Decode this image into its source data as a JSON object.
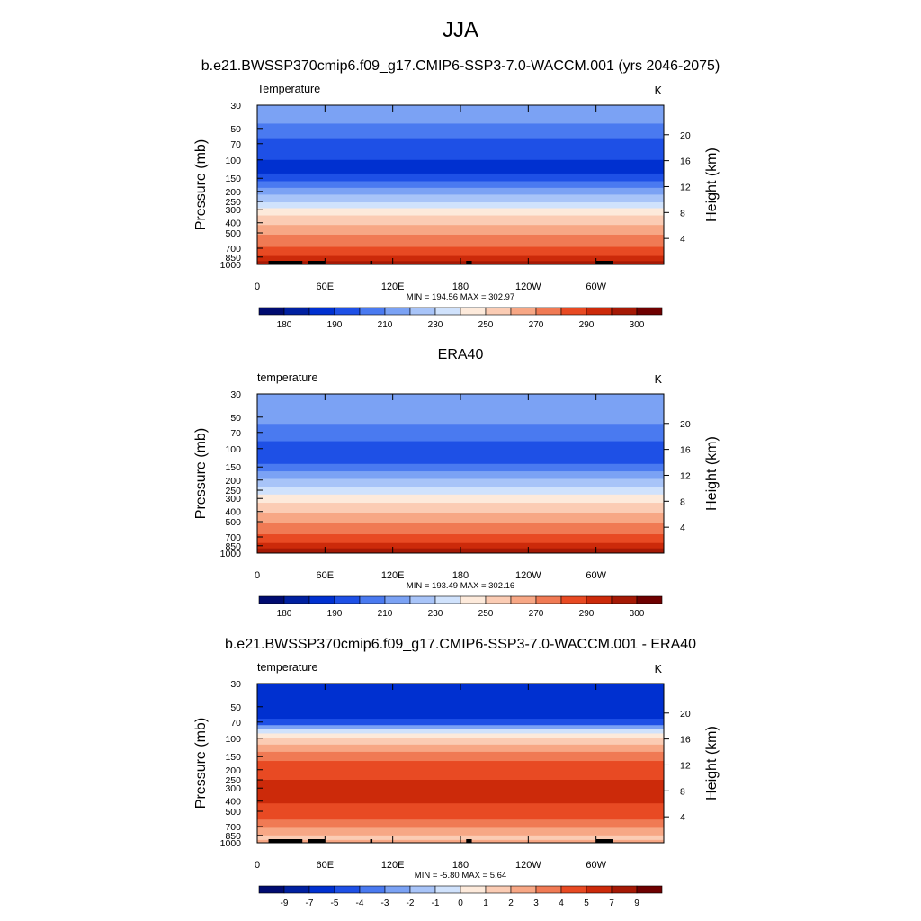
{
  "figure_title": "JJA",
  "colors": {
    "temp_palette": [
      "#000b70",
      "#0020a0",
      "#0030d0",
      "#1e50e6",
      "#4a7af0",
      "#7ba2f4",
      "#a8c4f8",
      "#d0e2fc",
      "#fdeadb",
      "#fbccb4",
      "#f7a785",
      "#f07a54",
      "#e84a23",
      "#cc2a0a",
      "#a51905",
      "#6e0000"
    ],
    "diff_palette": [
      "#000b70",
      "#0020a0",
      "#0030d0",
      "#1e50e6",
      "#4a7af0",
      "#7ba2f4",
      "#a8c4f8",
      "#d0e2fc",
      "#fdeadb",
      "#fbccb4",
      "#f7a785",
      "#f07a54",
      "#e84a23",
      "#cc2a0a",
      "#a51905",
      "#6e0000"
    ]
  },
  "chart_data": [
    {
      "type": "heatmap",
      "title": "b.e21.BWSSP370cmip6.f09_g17.CMIP6-SSP3-7.0-WACCM.001 (yrs 2046-2075)",
      "left_label": "Temperature",
      "units": "K",
      "ylabel": "Pressure (mb)",
      "ylabel_right": "Height (km)",
      "y_ticks": [
        "30",
        "50",
        "70",
        "100",
        "150",
        "200",
        "250",
        "300",
        "400",
        "500",
        "700",
        "850",
        "1000"
      ],
      "y_tick_values": [
        30,
        50,
        70,
        100,
        150,
        200,
        250,
        300,
        400,
        500,
        700,
        850,
        1000
      ],
      "right_ticks": [
        "20",
        "16",
        "12",
        "8",
        "4"
      ],
      "right_tick_values": [
        20,
        16,
        12,
        8,
        4
      ],
      "x_ticks": [
        "0",
        "60E",
        "120E",
        "180",
        "120W",
        "60W"
      ],
      "x_tick_values": [
        0,
        60,
        120,
        180,
        240,
        300
      ],
      "xlim": [
        0,
        360
      ],
      "ylim": [
        30,
        1000
      ],
      "stats": "MIN = 194.56  MAX = 302.97",
      "colorbar_labels": [
        "180",
        "190",
        "210",
        "230",
        "250",
        "270",
        "290",
        "300"
      ],
      "colorbar_label_positions": [
        1,
        3,
        5,
        7,
        9,
        11,
        13,
        15
      ],
      "levels": [
        {
          "p": 30,
          "c": 5
        },
        {
          "p": 45,
          "c": 4
        },
        {
          "p": 62,
          "c": 3
        },
        {
          "p": 100,
          "c": 2
        },
        {
          "p": 135,
          "c": 3
        },
        {
          "p": 160,
          "c": 4
        },
        {
          "p": 185,
          "c": 5
        },
        {
          "p": 215,
          "c": 6
        },
        {
          "p": 255,
          "c": 7
        },
        {
          "p": 290,
          "c": 8
        },
        {
          "p": 340,
          "c": 9
        },
        {
          "p": 420,
          "c": 10
        },
        {
          "p": 520,
          "c": 11
        },
        {
          "p": 680,
          "c": 12
        },
        {
          "p": 830,
          "c": 13
        },
        {
          "p": 930,
          "c": 14
        }
      ],
      "topography": [
        [
          10,
          30
        ],
        [
          25,
          35
        ],
        [
          33,
          40
        ],
        [
          45,
          60
        ],
        [
          100,
          102
        ],
        [
          185,
          190
        ],
        [
          300,
          315
        ]
      ]
    },
    {
      "type": "heatmap",
      "title": "ERA40",
      "left_label": "temperature",
      "units": "K",
      "ylabel": "Pressure (mb)",
      "ylabel_right": "Height (km)",
      "y_ticks": [
        "30",
        "50",
        "70",
        "100",
        "150",
        "200",
        "250",
        "300",
        "400",
        "500",
        "700",
        "850",
        "1000"
      ],
      "y_tick_values": [
        30,
        50,
        70,
        100,
        150,
        200,
        250,
        300,
        400,
        500,
        700,
        850,
        1000
      ],
      "right_ticks": [
        "20",
        "16",
        "12",
        "8",
        "4"
      ],
      "right_tick_values": [
        20,
        16,
        12,
        8,
        4
      ],
      "x_ticks": [
        "0",
        "60E",
        "120E",
        "180",
        "120W",
        "60W"
      ],
      "x_tick_values": [
        0,
        60,
        120,
        180,
        240,
        300
      ],
      "xlim": [
        0,
        360
      ],
      "ylim": [
        30,
        1000
      ],
      "stats": "MIN = 193.49  MAX = 302.16",
      "colorbar_labels": [
        "180",
        "190",
        "210",
        "230",
        "250",
        "270",
        "290",
        "300"
      ],
      "colorbar_label_positions": [
        1,
        3,
        5,
        7,
        9,
        11,
        13,
        15
      ],
      "levels": [
        {
          "p": 30,
          "c": 5
        },
        {
          "p": 58,
          "c": 4
        },
        {
          "p": 85,
          "c": 3
        },
        {
          "p": 115,
          "c": 3
        },
        {
          "p": 140,
          "c": 4
        },
        {
          "p": 165,
          "c": 5
        },
        {
          "p": 195,
          "c": 6
        },
        {
          "p": 235,
          "c": 7
        },
        {
          "p": 275,
          "c": 8
        },
        {
          "p": 330,
          "c": 9
        },
        {
          "p": 410,
          "c": 10
        },
        {
          "p": 510,
          "c": 11
        },
        {
          "p": 660,
          "c": 12
        },
        {
          "p": 800,
          "c": 13
        },
        {
          "p": 900,
          "c": 14
        }
      ],
      "topography": []
    },
    {
      "type": "heatmap",
      "title": "b.e21.BWSSP370cmip6.f09_g17.CMIP6-SSP3-7.0-WACCM.001 - ERA40",
      "left_label": "temperature",
      "units": "K",
      "ylabel": "Pressure (mb)",
      "ylabel_right": "Height (km)",
      "y_ticks": [
        "30",
        "50",
        "70",
        "100",
        "150",
        "200",
        "250",
        "300",
        "400",
        "500",
        "700",
        "850",
        "1000"
      ],
      "y_tick_values": [
        30,
        50,
        70,
        100,
        150,
        200,
        250,
        300,
        400,
        500,
        700,
        850,
        1000
      ],
      "right_ticks": [
        "20",
        "16",
        "12",
        "8",
        "4"
      ],
      "right_tick_values": [
        20,
        16,
        12,
        8,
        4
      ],
      "x_ticks": [
        "0",
        "60E",
        "120E",
        "180",
        "120W",
        "60W"
      ],
      "x_tick_values": [
        0,
        60,
        120,
        180,
        240,
        300
      ],
      "xlim": [
        0,
        360
      ],
      "ylim": [
        30,
        1000
      ],
      "stats": "MIN =  -5.80  MAX =   5.64",
      "colorbar_labels": [
        "-9",
        "-7",
        "-5",
        "-4",
        "-3",
        "-2",
        "-1",
        "0",
        "1",
        "2",
        "3",
        "4",
        "5",
        "7",
        "9"
      ],
      "colorbar_label_positions": [
        1,
        2,
        3,
        4,
        5,
        6,
        7,
        8,
        9,
        10,
        11,
        12,
        13,
        14,
        15
      ],
      "levels": [
        {
          "p": 30,
          "c": 2
        },
        {
          "p": 65,
          "c": 3
        },
        {
          "p": 75,
          "c": 5
        },
        {
          "p": 82,
          "c": 7
        },
        {
          "p": 90,
          "c": 8
        },
        {
          "p": 100,
          "c": 9
        },
        {
          "p": 115,
          "c": 10
        },
        {
          "p": 135,
          "c": 11
        },
        {
          "p": 165,
          "c": 12
        },
        {
          "p": 250,
          "c": 13
        },
        {
          "p": 420,
          "c": 12
        },
        {
          "p": 600,
          "c": 11
        },
        {
          "p": 720,
          "c": 10
        },
        {
          "p": 850,
          "c": 9
        },
        {
          "p": 940,
          "c": 10
        }
      ],
      "topography": [
        [
          10,
          30
        ],
        [
          25,
          35
        ],
        [
          33,
          40
        ],
        [
          45,
          60
        ],
        [
          100,
          102
        ],
        [
          185,
          190
        ],
        [
          300,
          315
        ]
      ]
    }
  ]
}
